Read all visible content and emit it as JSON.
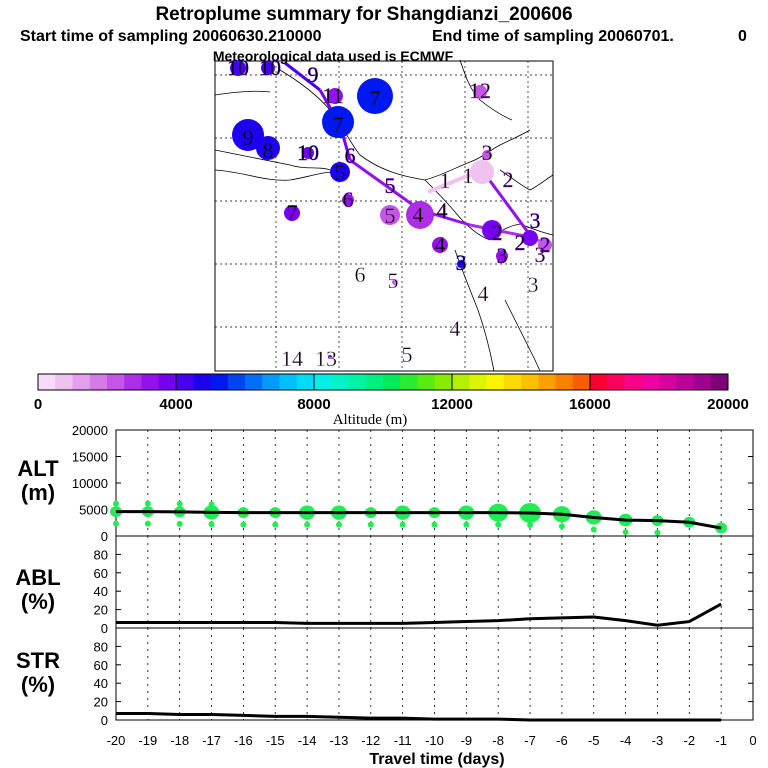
{
  "header": {
    "title": "Retroplume summary for Shangdianzi_200606",
    "start_label": "Start time of sampling 20060630.210000",
    "end_label": "End time of sampling 20060701.",
    "end_trailing": "0",
    "met_label": "Meteorological data used is ECMWF"
  },
  "colorbar": {
    "ticks": [
      "0",
      "4000",
      "8000",
      "12000",
      "16000",
      "20000"
    ],
    "label": "Altitude (m)",
    "colors": [
      "#f6dcf6",
      "#efc2ef",
      "#e4a0ec",
      "#d67ae8",
      "#c455e8",
      "#ac2ee8",
      "#9410ec",
      "#7800f0",
      "#4800f0",
      "#1e00f0",
      "#0018f0",
      "#0044f4",
      "#0070f8",
      "#009cfc",
      "#00c0fc",
      "#00dcf8",
      "#00f0e8",
      "#00f4c8",
      "#00f4a4",
      "#00f080",
      "#00ec5c",
      "#28ec30",
      "#58ec10",
      "#88ec00",
      "#b4f000",
      "#dcf400",
      "#fcf400",
      "#fcdc00",
      "#fcc000",
      "#fca000",
      "#fc8000",
      "#fc5c00",
      "#fc0030",
      "#fc0060",
      "#fc0088",
      "#f000a0",
      "#d800a0",
      "#bc0098",
      "#a00090",
      "#800078"
    ]
  },
  "map": {
    "labels": [
      {
        "t": "10",
        "c": "#4800f0"
      },
      {
        "t": "10",
        "c": "#4800f0"
      },
      {
        "t": "9",
        "c": "#4800f0"
      },
      {
        "t": "11",
        "c": "#9410ec"
      },
      {
        "t": "12",
        "c": "#c455e8"
      },
      {
        "t": "7",
        "c": "#0018f0"
      },
      {
        "t": "7",
        "c": "#0018f0"
      },
      {
        "t": "9",
        "c": "#1e00f0"
      },
      {
        "t": "8",
        "c": "#1e00f0"
      },
      {
        "t": "10",
        "c": "#1e00f0"
      },
      {
        "t": "6",
        "c": "#7800f0"
      },
      {
        "t": "5",
        "c": "#1e00f0"
      },
      {
        "t": "5",
        "c": "#9410ec"
      },
      {
        "t": "4",
        "c": "#ac2ee8"
      },
      {
        "t": "5",
        "c": "#c455e8"
      },
      {
        "t": "6",
        "c": "#9410ec"
      },
      {
        "t": "7",
        "c": "#7800f0"
      },
      {
        "t": "1",
        "c": "#e4a0ec"
      },
      {
        "t": "1",
        "c": "#e4a0ec"
      },
      {
        "t": "3",
        "c": "#c455e8"
      },
      {
        "t": "2",
        "c": "#c455e8"
      },
      {
        "t": "4",
        "c": "#9410ec"
      },
      {
        "t": "4",
        "c": "#9410ec"
      },
      {
        "t": "2",
        "c": "#7800f0"
      },
      {
        "t": "2",
        "c": "#7800f0"
      },
      {
        "t": "3",
        "c": "#7800f0"
      },
      {
        "t": "2",
        "c": "#9410ec"
      },
      {
        "t": "3",
        "c": "#7800f0"
      },
      {
        "t": "3",
        "c": "#c455e8"
      },
      {
        "t": "3",
        "c": "#1e00f0"
      },
      {
        "t": "6",
        "c": "#f6dcf6"
      },
      {
        "t": "5",
        "c": "#f6dcf6"
      },
      {
        "t": "4",
        "c": "#f6dcf6"
      },
      {
        "t": "3",
        "c": "#f6dcf6"
      },
      {
        "t": "4",
        "c": "#f6dcf6"
      },
      {
        "t": "14",
        "c": "#f6dcf6"
      },
      {
        "t": "13",
        "c": "#f6dcf6"
      },
      {
        "t": "5",
        "c": "#f6dcf6"
      }
    ]
  },
  "panels": {
    "alt_label_1": "ALT",
    "alt_label_2": "(m)",
    "abl_label_1": "ABL",
    "abl_label_2": "(%)",
    "str_label_1": "STR",
    "str_label_2": "(%)",
    "alt_ticks": [
      "0",
      "5000",
      "10000",
      "15000",
      "20000"
    ],
    "pct_ticks": [
      "0",
      "20",
      "40",
      "60",
      "80"
    ],
    "x_ticks": [
      "-20",
      "-19",
      "-18",
      "-17",
      "-16",
      "-15",
      "-14",
      "-13",
      "-12",
      "-11",
      "-10",
      "-9",
      "-8",
      "-7",
      "-6",
      "-5",
      "-4",
      "-3",
      "-2",
      "-1",
      "0"
    ],
    "x_label": "Travel time (days)"
  },
  "chart_data": {
    "type": "line",
    "title": "Retroplume summary for Shangdianzi_200606",
    "xlabel": "Travel time (days)",
    "x": [
      -20,
      -19,
      -18,
      -17,
      -16,
      -15,
      -14,
      -13,
      -12,
      -11,
      -10,
      -9,
      -8,
      -7,
      -6,
      -5,
      -4,
      -3,
      -2,
      -1
    ],
    "series": [
      {
        "name": "ALT (m)",
        "ylim": [
          0,
          20000
        ],
        "values": [
          4600,
          4600,
          4550,
          4450,
          4400,
          4400,
          4400,
          4400,
          4400,
          4400,
          4400,
          4400,
          4400,
          4350,
          4100,
          3500,
          3000,
          2900,
          2600,
          1500
        ]
      },
      {
        "name": "ABL (%)",
        "ylim": [
          0,
          100
        ],
        "values": [
          6,
          6,
          6,
          6,
          6,
          6,
          5,
          5,
          5,
          5,
          6,
          7,
          8,
          10,
          11,
          12,
          8,
          3,
          7,
          26
        ]
      },
      {
        "name": "STR (%)",
        "ylim": [
          0,
          100
        ],
        "values": [
          7,
          7,
          6,
          6,
          5,
          4,
          4,
          3,
          2,
          2,
          1,
          1,
          1,
          0,
          0,
          0,
          0,
          0,
          0,
          0
        ]
      }
    ]
  }
}
